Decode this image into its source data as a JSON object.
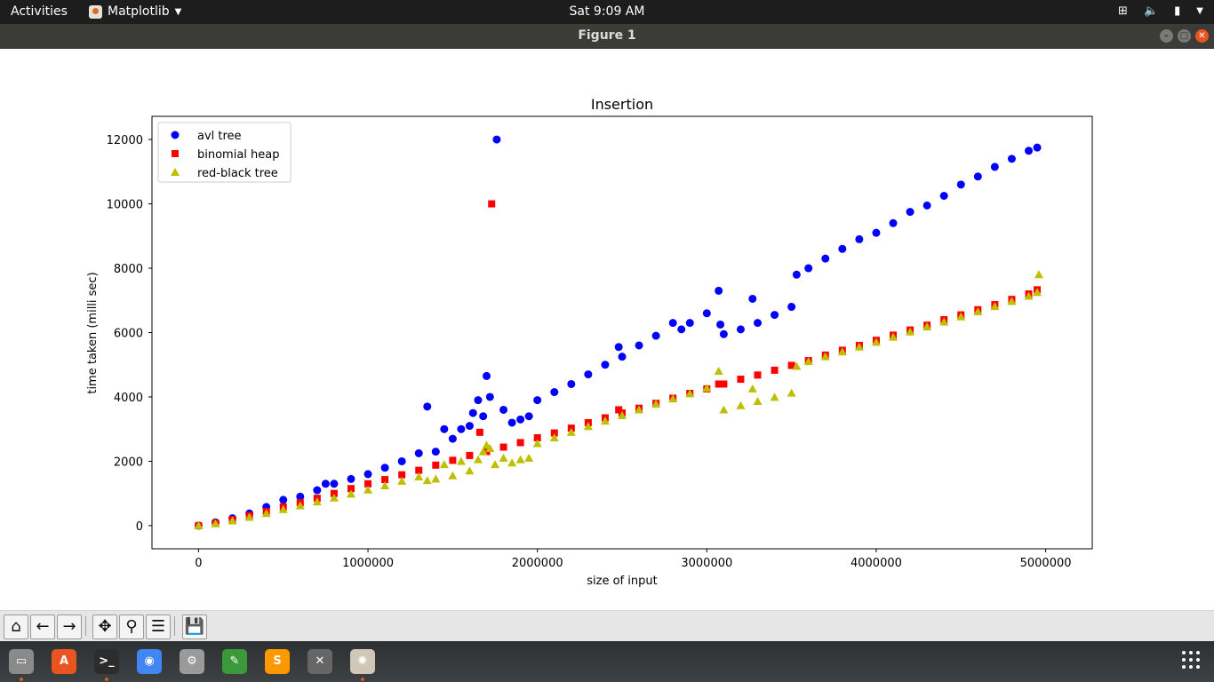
{
  "topbar": {
    "activities": "Activities",
    "app_name": "Matplotlib",
    "clock": "Sat  9:09 AM"
  },
  "window": {
    "title": "Figure 1"
  },
  "chart_data": {
    "type": "scatter",
    "title": "Insertion",
    "xlabel": "size of input",
    "ylabel": "time taken (milli sec)",
    "xlim": [
      -275000,
      5275000
    ],
    "ylim": [
      -720,
      12720
    ],
    "xticks": [
      0,
      1000000,
      2000000,
      3000000,
      4000000,
      5000000
    ],
    "xtick_labels": [
      "0",
      "1000000",
      "2000000",
      "3000000",
      "4000000",
      "5000000"
    ],
    "yticks": [
      0,
      2000,
      4000,
      6000,
      8000,
      10000,
      12000
    ],
    "ytick_labels": [
      "0",
      "2000",
      "4000",
      "6000",
      "8000",
      "10000",
      "12000"
    ],
    "legend": "upper-left",
    "series": [
      {
        "name": "avl tree",
        "marker": "circle",
        "color": "#0000ff",
        "points": [
          [
            0,
            0
          ],
          [
            100000,
            100
          ],
          [
            200000,
            230
          ],
          [
            300000,
            380
          ],
          [
            400000,
            580
          ],
          [
            500000,
            800
          ],
          [
            600000,
            900
          ],
          [
            700000,
            1100
          ],
          [
            750000,
            1300
          ],
          [
            800000,
            1300
          ],
          [
            900000,
            1450
          ],
          [
            1000000,
            1600
          ],
          [
            1100000,
            1800
          ],
          [
            1200000,
            2000
          ],
          [
            1300000,
            2250
          ],
          [
            1350000,
            3700
          ],
          [
            1400000,
            2300
          ],
          [
            1450000,
            3000
          ],
          [
            1500000,
            2700
          ],
          [
            1550000,
            3000
          ],
          [
            1600000,
            3100
          ],
          [
            1620000,
            3500
          ],
          [
            1650000,
            3900
          ],
          [
            1680000,
            3400
          ],
          [
            1700000,
            4650
          ],
          [
            1720000,
            4000
          ],
          [
            1760000,
            12000
          ],
          [
            1800000,
            3600
          ],
          [
            1850000,
            3200
          ],
          [
            1900000,
            3300
          ],
          [
            1950000,
            3400
          ],
          [
            2000000,
            3900
          ],
          [
            2100000,
            4150
          ],
          [
            2200000,
            4400
          ],
          [
            2300000,
            4700
          ],
          [
            2400000,
            5000
          ],
          [
            2480000,
            5550
          ],
          [
            2500000,
            5250
          ],
          [
            2600000,
            5600
          ],
          [
            2700000,
            5900
          ],
          [
            2800000,
            6300
          ],
          [
            2850000,
            6100
          ],
          [
            2900000,
            6300
          ],
          [
            3000000,
            6600
          ],
          [
            3070000,
            7300
          ],
          [
            3080000,
            6250
          ],
          [
            3100000,
            5950
          ],
          [
            3200000,
            6100
          ],
          [
            3270000,
            7050
          ],
          [
            3300000,
            6300
          ],
          [
            3400000,
            6550
          ],
          [
            3500000,
            6800
          ],
          [
            3530000,
            7800
          ],
          [
            3600000,
            8000
          ],
          [
            3700000,
            8300
          ],
          [
            3800000,
            8600
          ],
          [
            3900000,
            8900
          ],
          [
            4000000,
            9100
          ],
          [
            4100000,
            9400
          ],
          [
            4200000,
            9750
          ],
          [
            4300000,
            9950
          ],
          [
            4400000,
            10250
          ],
          [
            4500000,
            10600
          ],
          [
            4600000,
            10850
          ],
          [
            4700000,
            11150
          ],
          [
            4800000,
            11400
          ],
          [
            4900000,
            11650
          ],
          [
            4950000,
            11750
          ]
        ]
      },
      {
        "name": "binomial heap",
        "marker": "square",
        "color": "#ff0000",
        "points": [
          [
            0,
            0
          ],
          [
            100000,
            80
          ],
          [
            200000,
            190
          ],
          [
            300000,
            310
          ],
          [
            400000,
            440
          ],
          [
            500000,
            580
          ],
          [
            600000,
            710
          ],
          [
            700000,
            850
          ],
          [
            800000,
            1000
          ],
          [
            900000,
            1150
          ],
          [
            1000000,
            1300
          ],
          [
            1100000,
            1430
          ],
          [
            1200000,
            1580
          ],
          [
            1300000,
            1720
          ],
          [
            1400000,
            1880
          ],
          [
            1500000,
            2030
          ],
          [
            1600000,
            2180
          ],
          [
            1660000,
            2900
          ],
          [
            1700000,
            2300
          ],
          [
            1730000,
            10000
          ],
          [
            1800000,
            2440
          ],
          [
            1900000,
            2580
          ],
          [
            2000000,
            2730
          ],
          [
            2100000,
            2880
          ],
          [
            2200000,
            3030
          ],
          [
            2300000,
            3200
          ],
          [
            2400000,
            3350
          ],
          [
            2480000,
            3600
          ],
          [
            2500000,
            3500
          ],
          [
            2600000,
            3650
          ],
          [
            2700000,
            3800
          ],
          [
            2800000,
            3960
          ],
          [
            2900000,
            4110
          ],
          [
            3000000,
            4250
          ],
          [
            3070000,
            4400
          ],
          [
            3100000,
            4400
          ],
          [
            3200000,
            4550
          ],
          [
            3300000,
            4680
          ],
          [
            3400000,
            4830
          ],
          [
            3500000,
            4980
          ],
          [
            3600000,
            5130
          ],
          [
            3700000,
            5300
          ],
          [
            3800000,
            5450
          ],
          [
            3900000,
            5600
          ],
          [
            4000000,
            5760
          ],
          [
            4100000,
            5920
          ],
          [
            4200000,
            6080
          ],
          [
            4300000,
            6230
          ],
          [
            4400000,
            6400
          ],
          [
            4500000,
            6550
          ],
          [
            4600000,
            6710
          ],
          [
            4700000,
            6870
          ],
          [
            4800000,
            7030
          ],
          [
            4900000,
            7200
          ],
          [
            4950000,
            7330
          ]
        ]
      },
      {
        "name": "red-black tree",
        "marker": "triangle",
        "color": "#bfbf00",
        "points": [
          [
            0,
            0
          ],
          [
            100000,
            60
          ],
          [
            200000,
            150
          ],
          [
            300000,
            260
          ],
          [
            400000,
            380
          ],
          [
            500000,
            500
          ],
          [
            600000,
            620
          ],
          [
            700000,
            740
          ],
          [
            800000,
            860
          ],
          [
            900000,
            980
          ],
          [
            1000000,
            1110
          ],
          [
            1100000,
            1240
          ],
          [
            1200000,
            1380
          ],
          [
            1300000,
            1520
          ],
          [
            1350000,
            1400
          ],
          [
            1400000,
            1450
          ],
          [
            1450000,
            1900
          ],
          [
            1500000,
            1550
          ],
          [
            1550000,
            2000
          ],
          [
            1600000,
            1700
          ],
          [
            1650000,
            2050
          ],
          [
            1680000,
            2300
          ],
          [
            1700000,
            2500
          ],
          [
            1720000,
            2400
          ],
          [
            1750000,
            1900
          ],
          [
            1800000,
            2100
          ],
          [
            1850000,
            1950
          ],
          [
            1900000,
            2050
          ],
          [
            1950000,
            2100
          ],
          [
            2000000,
            2550
          ],
          [
            2100000,
            2730
          ],
          [
            2200000,
            2900
          ],
          [
            2300000,
            3080
          ],
          [
            2400000,
            3250
          ],
          [
            2500000,
            3420
          ],
          [
            2600000,
            3600
          ],
          [
            2700000,
            3780
          ],
          [
            2800000,
            3940
          ],
          [
            2900000,
            4100
          ],
          [
            3000000,
            4270
          ],
          [
            3070000,
            4800
          ],
          [
            3100000,
            3600
          ],
          [
            3200000,
            3730
          ],
          [
            3270000,
            4250
          ],
          [
            3300000,
            3860
          ],
          [
            3400000,
            3990
          ],
          [
            3500000,
            4120
          ],
          [
            3530000,
            4950
          ],
          [
            3600000,
            5100
          ],
          [
            3700000,
            5250
          ],
          [
            3800000,
            5400
          ],
          [
            3900000,
            5550
          ],
          [
            4000000,
            5700
          ],
          [
            4100000,
            5860
          ],
          [
            4200000,
            6020
          ],
          [
            4300000,
            6180
          ],
          [
            4400000,
            6330
          ],
          [
            4500000,
            6490
          ],
          [
            4600000,
            6650
          ],
          [
            4700000,
            6810
          ],
          [
            4800000,
            6970
          ],
          [
            4900000,
            7130
          ],
          [
            4950000,
            7250
          ],
          [
            4960000,
            7800
          ]
        ]
      }
    ]
  },
  "toolbar": {
    "buttons": [
      {
        "name": "home",
        "glyph": "⌂"
      },
      {
        "name": "back",
        "glyph": "←"
      },
      {
        "name": "forward",
        "glyph": "→"
      },
      {
        "name": "pan",
        "glyph": "✥"
      },
      {
        "name": "zoom",
        "glyph": "⚲"
      },
      {
        "name": "configure-subplots",
        "glyph": "☰"
      },
      {
        "name": "save",
        "glyph": "💾"
      }
    ]
  },
  "dock": {
    "apps": [
      {
        "name": "files",
        "color": "#8a8a8a",
        "glyph": "▭"
      },
      {
        "name": "software",
        "color": "#e95420",
        "glyph": "A"
      },
      {
        "name": "terminal",
        "color": "#2c2c2c",
        "glyph": ">_"
      },
      {
        "name": "chrome",
        "color": "#4285f4",
        "glyph": "◉"
      },
      {
        "name": "settings",
        "color": "#9a9a9a",
        "glyph": "⚙"
      },
      {
        "name": "editor",
        "color": "#3a9a3a",
        "glyph": "✎"
      },
      {
        "name": "sublime",
        "color": "#ff9800",
        "glyph": "S"
      },
      {
        "name": "network",
        "color": "#666666",
        "glyph": "✕"
      },
      {
        "name": "matplotlib",
        "color": "#cfc8b8",
        "glyph": "✺"
      }
    ]
  }
}
